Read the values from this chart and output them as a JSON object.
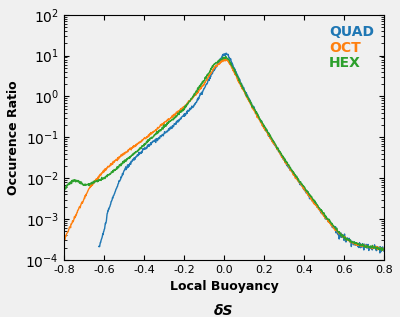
{
  "title": "",
  "xlabel": "Local Buoyancy",
  "xlabel2": "δS",
  "ylabel": "Occurence Ratio",
  "xlim": [
    -0.8,
    0.8
  ],
  "ylim": [
    0.0001,
    100.0
  ],
  "colors": {
    "QUAD": "#1f77b4",
    "OCT": "#ff7f0e",
    "HEX": "#2ca02c"
  },
  "legend_labels": [
    "QUAD",
    "OCT",
    "HEX"
  ],
  "figsize": [
    4.0,
    3.17
  ],
  "dpi": 100,
  "bg_color": "#f0f0f0"
}
